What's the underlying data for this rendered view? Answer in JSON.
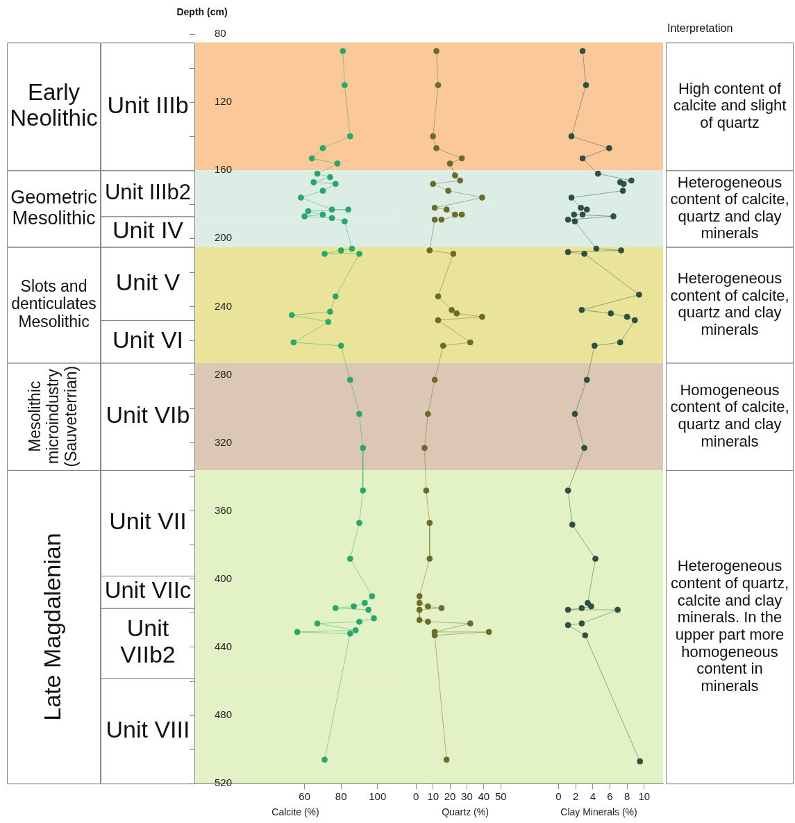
{
  "chart_data": [
    {
      "type": "line",
      "ylabel": "Depth (cm)",
      "xlabel": "Calcite (%)",
      "marker": "circle",
      "line_style": "solid",
      "grid": false,
      "xlim": [
        0,
        110
      ],
      "xticks": [
        60,
        80,
        100
      ],
      "ylim": [
        520,
        80
      ],
      "yticks": [
        80,
        {
          "value": 100,
          "label": null
        },
        120,
        {
          "value": 140,
          "label": null
        },
        160,
        {
          "value": 180,
          "label": null
        },
        200,
        {
          "value": 220,
          "label": null
        },
        240,
        {
          "value": 260,
          "label": null
        },
        280,
        {
          "value": 300,
          "label": null
        },
        320,
        {
          "value": 340,
          "label": null
        },
        360,
        {
          "value": 380,
          "label": null
        },
        400,
        {
          "value": 420,
          "label": null
        },
        440,
        {
          "value": 460,
          "label": null
        },
        480,
        {
          "value": 500,
          "label": null
        },
        520
      ],
      "annotations": [
        "Early Neolithic",
        "Geometric Mesolithic",
        "Slots and denticulates Mesolithic",
        "Mesolithic microindustry (Sauveterrian)",
        "Late Magdalenian"
      ],
      "bands": [
        {
          "axis": "y",
          "from": 85,
          "to": 160,
          "label": "Unit IIIb",
          "color": "#fbc89a"
        },
        {
          "axis": "y",
          "from": 160,
          "to": 187,
          "label": "Unit IIIb2",
          "color": "#dcede6"
        },
        {
          "axis": "y",
          "from": 187,
          "to": 205,
          "label": "Unit IV",
          "color": "#dcede6"
        },
        {
          "axis": "y",
          "from": 205,
          "to": 248,
          "label": "Unit V",
          "color": "#e9e49a"
        },
        {
          "axis": "y",
          "from": 248,
          "to": 273,
          "label": "Unit VI",
          "color": "#e9e49a"
        },
        {
          "axis": "y",
          "from": 273,
          "to": 336,
          "label": "Unit VIb",
          "color": "#dcc7b5"
        },
        {
          "axis": "y",
          "from": 336,
          "to": 398,
          "label": "Unit VII",
          "color": "#e3f2c4"
        },
        {
          "axis": "y",
          "from": 398,
          "to": 417,
          "label": "Unit VIIc",
          "color": "#e3f2c4"
        },
        {
          "axis": "y",
          "from": 417,
          "to": 458,
          "label": "Unit VIIb2",
          "color": "#e3f2c4"
        },
        {
          "axis": "y",
          "from": 458,
          "to": 520,
          "label": "Unit VIII",
          "color": "#e3f2c4"
        }
      ],
      "series": [
        {
          "color": "#27a86a",
          "x": [
            81,
            82,
            85,
            70,
            64,
            78,
            67,
            74,
            65,
            77,
            70,
            58,
            75,
            84,
            62,
            70,
            60,
            75,
            82,
            86,
            80,
            71,
            90,
            77,
            74,
            53,
            73,
            54,
            80,
            85,
            90,
            92,
            92,
            90,
            85,
            97,
            93,
            87,
            77,
            95,
            98,
            90,
            67,
            88,
            56,
            85,
            71
          ],
          "values": [
            90,
            110,
            140,
            147,
            153,
            156,
            162,
            164,
            167,
            168,
            172,
            176,
            183,
            183,
            184,
            186,
            187,
            188,
            190,
            206,
            207,
            209,
            209,
            234,
            243,
            245,
            249,
            261,
            263,
            283,
            303,
            323,
            348,
            367,
            388,
            410,
            414,
            416,
            417,
            418,
            423,
            425,
            426,
            430,
            431,
            432,
            506
          ]
        }
      ]
    },
    {
      "type": "line",
      "xlabel": "Quartz (%)",
      "marker": "circle",
      "line_style": "solid",
      "grid": false,
      "tick_labels": "x",
      "xlim": [
        -12,
        70
      ],
      "xticks": [
        0,
        10,
        20,
        30,
        40,
        50
      ],
      "ylim": [
        520,
        80
      ],
      "bands": [
        {
          "axis": "y",
          "from": 85,
          "to": 160,
          "color": "#fbc89a"
        },
        {
          "axis": "y",
          "from": 160,
          "to": 205,
          "color": "#dcede6"
        },
        {
          "axis": "y",
          "from": 205,
          "to": 273,
          "color": "#e9e49a"
        },
        {
          "axis": "y",
          "from": 273,
          "to": 336,
          "color": "#dcc7b5"
        },
        {
          "axis": "y",
          "from": 336,
          "to": 520,
          "color": "#e3f2c4"
        }
      ],
      "series": [
        {
          "color": "#6b6b2a",
          "x": [
            12,
            13,
            10,
            12,
            27,
            20,
            23,
            26,
            10,
            19,
            39,
            11,
            18,
            23,
            27,
            15,
            11,
            8,
            22,
            13,
            21,
            24,
            39,
            13,
            32,
            16,
            11,
            7,
            5,
            6,
            8,
            8,
            2,
            2,
            7,
            15,
            2,
            2,
            7,
            32,
            11,
            43,
            11,
            18
          ],
          "values": [
            90,
            110,
            140,
            147,
            153,
            156,
            163,
            166,
            168,
            172,
            176,
            182,
            183,
            186,
            186,
            189,
            189,
            207,
            209,
            234,
            242,
            244,
            246,
            248,
            261,
            263,
            283,
            303,
            323,
            348,
            367,
            388,
            410,
            414,
            416,
            417,
            418,
            424,
            425,
            426,
            431,
            431,
            433,
            506
          ]
        }
      ]
    },
    {
      "type": "line",
      "xlabel": "Clay Minerals (%)",
      "marker": "circle",
      "line_style": "solid",
      "grid": false,
      "tick_labels": "x",
      "xlim": [
        -2.8,
        12.2
      ],
      "xticks": [
        0,
        2,
        4,
        6,
        8,
        10
      ],
      "ylim": [
        520,
        80
      ],
      "annotations": [
        "Interpretation"
      ],
      "bands": [
        {
          "axis": "y",
          "from": 85,
          "to": 160,
          "label": "High content of calcite and slight of quartz",
          "color": "#fbc89a"
        },
        {
          "axis": "y",
          "from": 160,
          "to": 205,
          "label": "Heterogeneous content of calcite, quartz and clay minerals",
          "color": "#dcede6"
        },
        {
          "axis": "y",
          "from": 205,
          "to": 273,
          "label": "Heterogeneous content of calcite, quartz and clay minerals",
          "color": "#e9e49a"
        },
        {
          "axis": "y",
          "from": 273,
          "to": 336,
          "label": "Homogeneous content of calcite, quartz and clay minerals",
          "color": "#dcc7b5"
        },
        {
          "axis": "y",
          "from": 336,
          "to": 520,
          "label": "Heterogeneous content of quartz, calcite and clay minerals. In the upper part more homogeneous content in minerals",
          "color": "#e3f2c4"
        }
      ],
      "series": [
        {
          "color": "#2f4f44",
          "x": [
            2.8,
            3.2,
            1.5,
            5.9,
            2.8,
            4.6,
            8.5,
            7.2,
            7.6,
            7.5,
            1.5,
            2.6,
            3.3,
            2.8,
            1.8,
            6.4,
            1.1,
            1.9,
            4.4,
            7.3,
            1.1,
            3.0,
            9.4,
            2.7,
            6.1,
            8.0,
            8.9,
            7.2,
            4.2,
            3.3,
            1.9,
            3.0,
            1.1,
            1.6,
            4.3,
            3.4,
            3.8,
            2.7,
            1.1,
            6.9,
            2.7,
            1.1,
            3.1,
            9.5
          ],
          "values": [
            90,
            110,
            140,
            147,
            153,
            162,
            166,
            167,
            168,
            172,
            176,
            182,
            183,
            186,
            186,
            187,
            189,
            190,
            206,
            207,
            208,
            209,
            233,
            242,
            244,
            246,
            248,
            261,
            263,
            283,
            303,
            323,
            348,
            368,
            388,
            414,
            416,
            417,
            418,
            418,
            426,
            427,
            433,
            507
          ]
        }
      ]
    }
  ]
}
